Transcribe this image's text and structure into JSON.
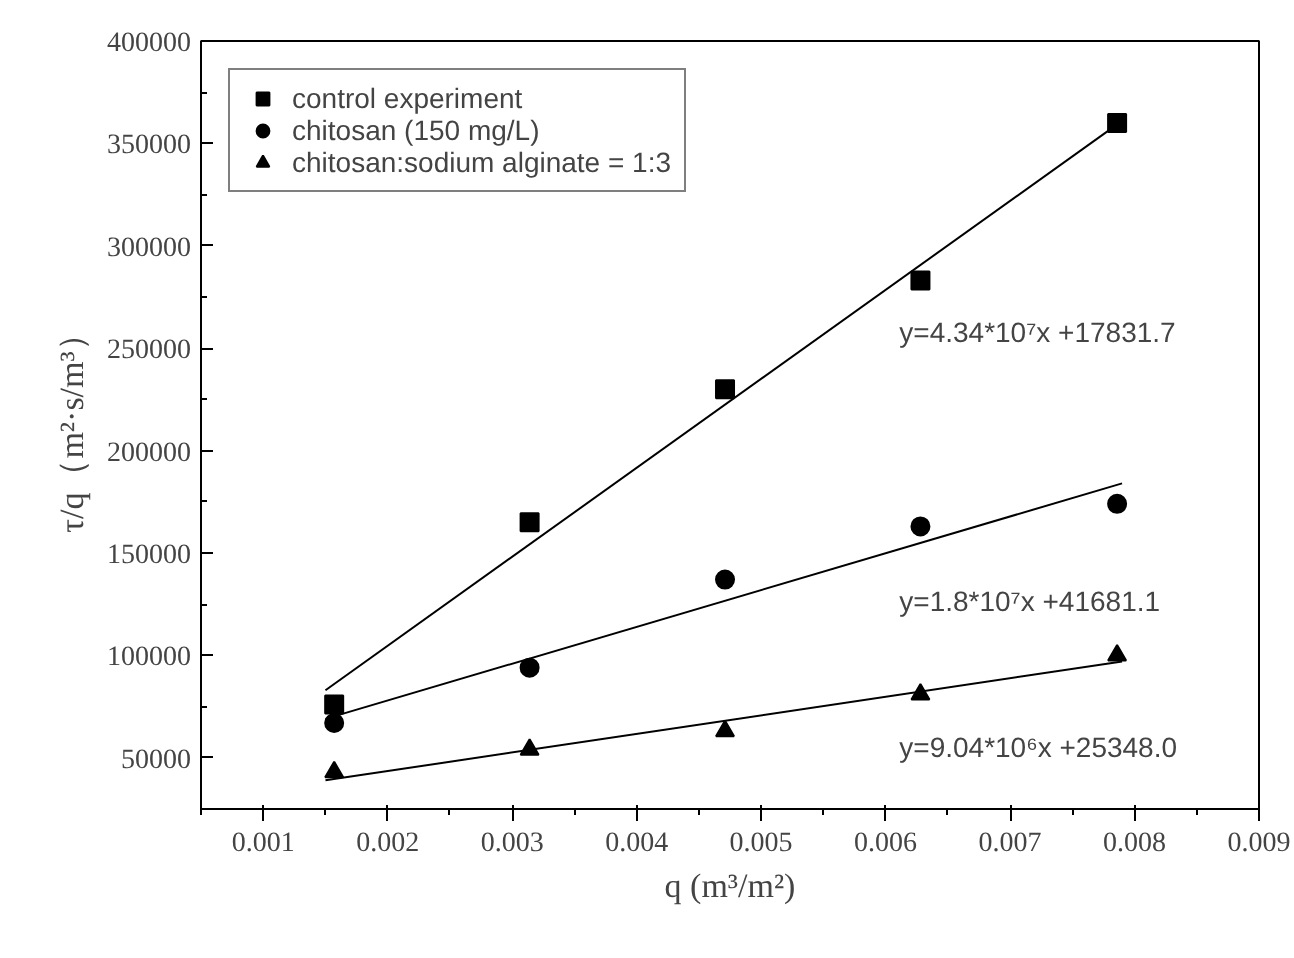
{
  "chart_data": {
    "type": "scatter",
    "xlabel": "q (m³/m²)",
    "ylabel": "τ/q（m²·s/m³）",
    "xlim": [
      0.0005,
      0.009
    ],
    "xticks": [
      0.001,
      0.002,
      0.003,
      0.004,
      0.005,
      0.006,
      0.007,
      0.008,
      0.009
    ],
    "ylim": [
      25000,
      400000
    ],
    "yticks": [
      50000,
      100000,
      150000,
      200000,
      250000,
      300000,
      350000,
      400000
    ],
    "grid": false,
    "legend": "top left",
    "series": [
      {
        "name": "control experiment",
        "color": "#000000",
        "marker": "square",
        "x": [
          0.00157,
          0.00314,
          0.00471,
          0.00628,
          0.00786
        ],
        "values": [
          76000,
          165000,
          230000,
          283000,
          360000
        ]
      },
      {
        "name": "chitosan (150 mg/L)",
        "color": "#000000",
        "marker": "circle",
        "x": [
          0.00157,
          0.00314,
          0.00471,
          0.00628,
          0.00786
        ],
        "values": [
          67000,
          94000,
          137000,
          163000,
          174000
        ]
      },
      {
        "name": "chitosan:sodium alginate = 1:3",
        "color": "#000000",
        "marker": "triangle",
        "x": [
          0.00157,
          0.00314,
          0.00471,
          0.00628,
          0.00786
        ],
        "values": [
          43000,
          54000,
          63000,
          81000,
          100000
        ]
      },
      {
        "type": "line",
        "color": "#000000",
        "x": [
          0.0015,
          0.0079
        ],
        "values": [
          83000,
          361000
        ]
      },
      {
        "type": "line",
        "color": "#000000",
        "x": [
          0.0015,
          0.0079
        ],
        "values": [
          69000,
          184000
        ]
      },
      {
        "type": "line",
        "color": "#000000",
        "x": [
          0.0015,
          0.0079
        ],
        "values": [
          39000,
          97000
        ]
      }
    ],
    "annotations": [
      "y=4.34*10⁷x +17831.7",
      "y=1.8*10⁷x +41681.1",
      "y=9.04*10⁶x +25348.0"
    ]
  }
}
